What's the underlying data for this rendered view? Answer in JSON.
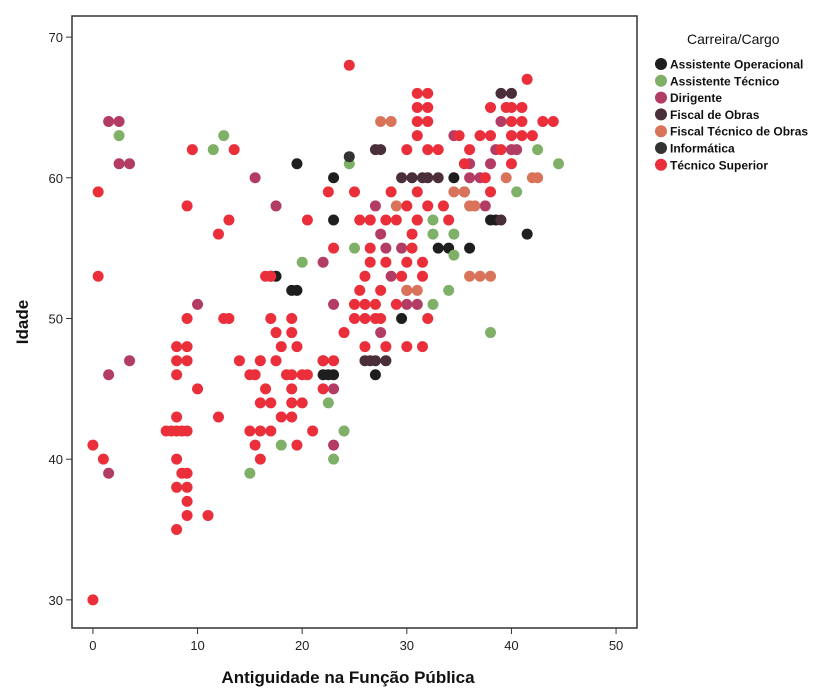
{
  "chart_data": {
    "type": "scatter",
    "title": "",
    "xlabel": "Antiguidade na Função Pública",
    "ylabel": "Idade",
    "xlim": [
      -2,
      52
    ],
    "ylim": [
      28,
      71.5
    ],
    "xticks": [
      0,
      10,
      20,
      30,
      40,
      50
    ],
    "yticks": [
      30,
      40,
      50,
      60,
      70
    ],
    "grid": false,
    "legend": {
      "title": "Carreira/Cargo",
      "position": "right"
    },
    "series": [
      {
        "name": "Assistente Operacional",
        "color": "#1e1e1e",
        "points": [
          [
            19.5,
            61
          ],
          [
            23,
            60
          ],
          [
            23,
            57
          ],
          [
            17,
            53
          ],
          [
            17.5,
            53
          ],
          [
            19,
            52
          ],
          [
            19.5,
            52
          ],
          [
            29.5,
            50
          ],
          [
            22,
            47
          ],
          [
            22,
            46
          ],
          [
            22.5,
            46
          ],
          [
            23,
            46
          ],
          [
            27,
            46
          ],
          [
            33,
            55
          ],
          [
            34,
            55
          ],
          [
            34.5,
            60
          ],
          [
            36,
            55
          ],
          [
            38,
            57
          ],
          [
            38.5,
            57
          ],
          [
            41.5,
            56
          ]
        ]
      },
      {
        "name": "Assistente Técnico",
        "color": "#7fb068",
        "points": [
          [
            2.5,
            63
          ],
          [
            11.5,
            62
          ],
          [
            12.5,
            63
          ],
          [
            24.5,
            61
          ],
          [
            20,
            54
          ],
          [
            25,
            55
          ],
          [
            32.5,
            57
          ],
          [
            32.5,
            56
          ],
          [
            34.5,
            56
          ],
          [
            34.5,
            54.5
          ],
          [
            34,
            52
          ],
          [
            32.5,
            51
          ],
          [
            22.5,
            44
          ],
          [
            24,
            42
          ],
          [
            23,
            40
          ],
          [
            18,
            41
          ],
          [
            15,
            39
          ],
          [
            38,
            49
          ],
          [
            40.5,
            59
          ],
          [
            42.5,
            62
          ],
          [
            44.5,
            61
          ]
        ]
      },
      {
        "name": "Dirigente",
        "color": "#b23c64",
        "points": [
          [
            1.5,
            64
          ],
          [
            2.5,
            64
          ],
          [
            2.5,
            61
          ],
          [
            3.5,
            61
          ],
          [
            1.5,
            46
          ],
          [
            1.5,
            39
          ],
          [
            3.5,
            47
          ],
          [
            10,
            51
          ],
          [
            15.5,
            60
          ],
          [
            17.5,
            58
          ],
          [
            22,
            54
          ],
          [
            23,
            51
          ],
          [
            23,
            45
          ],
          [
            23,
            41
          ],
          [
            26.5,
            57
          ],
          [
            27,
            58
          ],
          [
            27.5,
            56
          ],
          [
            28.5,
            53
          ],
          [
            28,
            55
          ],
          [
            29.5,
            55
          ],
          [
            30,
            52
          ],
          [
            30,
            51
          ],
          [
            31,
            51
          ],
          [
            34.5,
            63
          ],
          [
            36,
            61
          ],
          [
            36,
            60
          ],
          [
            37,
            60
          ],
          [
            38,
            61
          ],
          [
            38.5,
            62
          ],
          [
            39,
            64
          ],
          [
            40,
            62
          ],
          [
            40.5,
            62
          ],
          [
            37.5,
            58
          ],
          [
            27.5,
            49
          ]
        ]
      },
      {
        "name": "Fiscal de Obras",
        "color": "#4a2e3a",
        "points": [
          [
            27,
            62
          ],
          [
            27.5,
            62
          ],
          [
            26,
            47
          ],
          [
            26.5,
            47
          ],
          [
            27,
            47
          ],
          [
            28,
            47
          ],
          [
            29.5,
            60
          ],
          [
            30.5,
            60
          ],
          [
            31.5,
            60
          ],
          [
            32,
            60
          ],
          [
            33,
            60
          ],
          [
            39,
            66
          ],
          [
            40,
            66
          ],
          [
            39,
            57
          ],
          [
            35.5,
            59
          ]
        ]
      },
      {
        "name": "Fiscal Técnico de Obras",
        "color": "#d9735a",
        "points": [
          [
            27.5,
            64
          ],
          [
            28.5,
            64
          ],
          [
            29,
            58
          ],
          [
            30,
            52
          ],
          [
            31,
            52
          ],
          [
            34.5,
            59
          ],
          [
            35.5,
            59
          ],
          [
            36,
            58
          ],
          [
            36.5,
            58
          ],
          [
            36,
            53
          ],
          [
            37,
            53
          ],
          [
            38,
            53
          ],
          [
            42,
            60
          ],
          [
            42.5,
            60
          ],
          [
            39.5,
            60
          ],
          [
            31,
            57
          ]
        ]
      },
      {
        "name": "Informática",
        "color": "#333333",
        "points": [
          [
            24.5,
            61.5
          ]
        ]
      },
      {
        "name": "Técnico Superior",
        "color": "#ea2f3b",
        "points": [
          [
            0,
            30
          ],
          [
            0,
            41
          ],
          [
            0.5,
            53
          ],
          [
            0.5,
            59
          ],
          [
            1,
            40
          ],
          [
            8,
            35
          ],
          [
            8,
            40
          ],
          [
            8,
            42
          ],
          [
            7,
            42
          ],
          [
            7.5,
            42
          ],
          [
            8.5,
            42
          ],
          [
            9,
            42
          ],
          [
            8,
            43
          ],
          [
            8,
            46
          ],
          [
            8,
            47
          ],
          [
            8,
            48
          ],
          [
            8,
            38
          ],
          [
            8.5,
            39
          ],
          [
            9,
            38
          ],
          [
            9,
            37
          ],
          [
            9,
            36
          ],
          [
            9,
            39
          ],
          [
            9,
            48
          ],
          [
            9,
            47
          ],
          [
            9,
            50
          ],
          [
            9,
            58
          ],
          [
            9.5,
            62
          ],
          [
            10,
            45
          ],
          [
            11,
            36
          ],
          [
            12,
            43
          ],
          [
            12,
            56
          ],
          [
            12.5,
            50
          ],
          [
            13,
            50
          ],
          [
            13,
            57
          ],
          [
            13.5,
            62
          ],
          [
            14,
            47
          ],
          [
            15,
            46
          ],
          [
            15,
            42
          ],
          [
            15.5,
            46
          ],
          [
            15.5,
            41
          ],
          [
            16,
            40
          ],
          [
            16,
            44
          ],
          [
            16,
            42
          ],
          [
            16,
            47
          ],
          [
            16.5,
            45
          ],
          [
            16.5,
            53
          ],
          [
            17,
            53
          ],
          [
            17,
            44
          ],
          [
            17,
            42
          ],
          [
            17.5,
            47
          ],
          [
            17,
            50
          ],
          [
            17.5,
            49
          ],
          [
            18,
            43
          ],
          [
            18,
            48
          ],
          [
            18.5,
            46
          ],
          [
            19,
            43
          ],
          [
            19,
            44
          ],
          [
            19,
            45
          ],
          [
            19,
            46
          ],
          [
            19,
            50
          ],
          [
            19.5,
            48
          ],
          [
            19,
            49
          ],
          [
            19.5,
            41
          ],
          [
            20,
            44
          ],
          [
            20,
            46
          ],
          [
            20.5,
            46
          ],
          [
            20.5,
            57
          ],
          [
            21,
            42
          ],
          [
            22,
            45
          ],
          [
            22,
            47
          ],
          [
            22.5,
            59
          ],
          [
            23,
            47
          ],
          [
            23,
            55
          ],
          [
            24,
            49
          ],
          [
            24.5,
            68
          ],
          [
            25,
            51
          ],
          [
            25,
            50
          ],
          [
            25,
            59
          ],
          [
            25.5,
            57
          ],
          [
            25.5,
            52
          ],
          [
            26,
            51
          ],
          [
            26,
            53
          ],
          [
            26,
            48
          ],
          [
            26,
            50
          ],
          [
            26.5,
            54
          ],
          [
            26.5,
            57
          ],
          [
            26.5,
            55
          ],
          [
            27,
            51
          ],
          [
            27,
            50
          ],
          [
            27.5,
            52
          ],
          [
            27.5,
            50
          ],
          [
            28,
            57
          ],
          [
            28,
            54
          ],
          [
            28,
            48
          ],
          [
            28.5,
            59
          ],
          [
            29,
            57
          ],
          [
            29,
            51
          ],
          [
            29.5,
            53
          ],
          [
            30,
            48
          ],
          [
            30,
            62
          ],
          [
            30,
            58
          ],
          [
            30.5,
            56
          ],
          [
            30.5,
            55
          ],
          [
            30,
            54
          ],
          [
            31,
            66
          ],
          [
            31,
            65
          ],
          [
            31,
            64
          ],
          [
            31,
            63
          ],
          [
            31,
            59
          ],
          [
            31,
            57
          ],
          [
            31.5,
            54
          ],
          [
            31.5,
            53
          ],
          [
            31.5,
            48
          ],
          [
            32,
            66
          ],
          [
            32,
            65
          ],
          [
            32,
            64
          ],
          [
            32,
            62
          ],
          [
            32,
            58
          ],
          [
            32,
            50
          ],
          [
            33,
            62
          ],
          [
            33.5,
            58
          ],
          [
            34,
            57
          ],
          [
            35,
            63
          ],
          [
            35.5,
            61
          ],
          [
            36,
            62
          ],
          [
            37,
            63
          ],
          [
            37.5,
            60
          ],
          [
            38,
            59
          ],
          [
            38,
            63
          ],
          [
            38,
            65
          ],
          [
            39,
            62
          ],
          [
            39.5,
            65
          ],
          [
            40,
            63
          ],
          [
            40,
            64
          ],
          [
            40,
            65
          ],
          [
            40,
            61
          ],
          [
            41,
            64
          ],
          [
            41,
            65
          ],
          [
            41,
            63
          ],
          [
            41.5,
            67
          ],
          [
            42,
            63
          ],
          [
            43,
            64
          ],
          [
            44,
            64
          ]
        ]
      }
    ]
  }
}
